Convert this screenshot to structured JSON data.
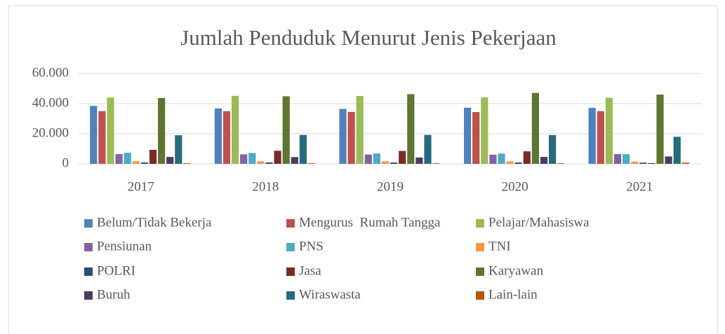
{
  "chart_data": {
    "type": "bar",
    "title": "Jumlah Penduduk Menurut Jenis Pekerjaan",
    "categories": [
      "2017",
      "2018",
      "2019",
      "2020",
      "2021"
    ],
    "series": [
      {
        "name": "Belum/Tidak Bekerja",
        "color": "#4f81bd",
        "values": [
          38500,
          36800,
          36500,
          37300,
          37200
        ]
      },
      {
        "name": "Mengurus  Rumah Tangga",
        "color": "#c0504d",
        "values": [
          35000,
          35000,
          34500,
          34400,
          35000
        ]
      },
      {
        "name": "Pelajar/Mahasiswa",
        "color": "#9bbb59",
        "values": [
          44000,
          45200,
          45100,
          44200,
          43900
        ]
      },
      {
        "name": "Pensiunan",
        "color": "#8064a2",
        "values": [
          6500,
          6300,
          6200,
          6100,
          6500
        ]
      },
      {
        "name": "PNS",
        "color": "#4bacc6",
        "values": [
          7400,
          7200,
          6900,
          6800,
          6400
        ]
      },
      {
        "name": "TNI",
        "color": "#f79646",
        "values": [
          1800,
          1700,
          1700,
          1600,
          1500
        ]
      },
      {
        "name": "POLRI",
        "color": "#2c4d75",
        "values": [
          900,
          900,
          900,
          900,
          800
        ]
      },
      {
        "name": "Jasa",
        "color": "#772c2a",
        "values": [
          9300,
          8700,
          8600,
          8300,
          500
        ]
      },
      {
        "name": "Karyawan",
        "color": "#5f7530",
        "values": [
          43700,
          44900,
          46300,
          47100,
          46000
        ]
      },
      {
        "name": "Buruh",
        "color": "#4d3b62",
        "values": [
          4600,
          4500,
          4200,
          4600,
          4900
        ]
      },
      {
        "name": "Wiraswasta",
        "color": "#276a7c",
        "values": [
          19000,
          19200,
          19200,
          19100,
          18000
        ]
      },
      {
        "name": "Lain-lain",
        "color": "#b65708",
        "values": [
          400,
          400,
          400,
          400,
          800
        ]
      }
    ],
    "ylim": [
      0,
      60000
    ],
    "yticks": [
      0,
      {
        "value": 20000,
        "label": "20.000"
      },
      {
        "value": 40000,
        "label": "40.000"
      },
      {
        "value": 60000,
        "label": "60.000"
      }
    ],
    "grid": true,
    "legend": "bottom"
  }
}
